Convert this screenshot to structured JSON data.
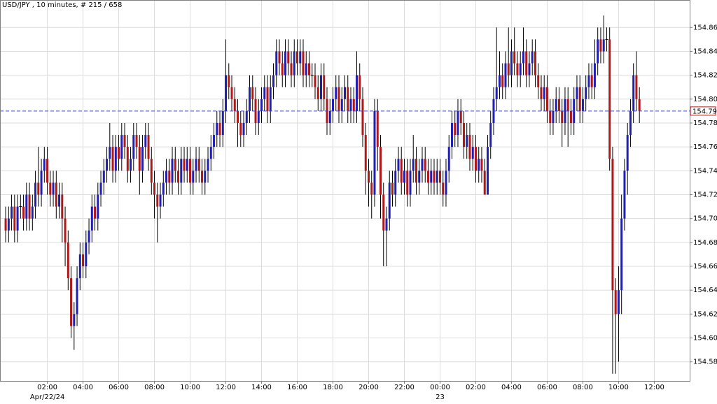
{
  "chart_data": {
    "type": "candlestick",
    "title": "USD/JPY , 10 minutes, # 215 / 658",
    "colors": {
      "up": "#2020b0",
      "down": "#b01818",
      "flat": "#000000",
      "last_price": "#4040c0"
    },
    "grid": true,
    "last_price": 154.79,
    "xlim": [
      -1.9,
      229.9
    ],
    "ylim": [
      154.564,
      154.883
    ],
    "xticks": [
      {
        "value": 14,
        "label": "02:00"
      },
      {
        "value": 26,
        "label": "04:00"
      },
      {
        "value": 38,
        "label": "06:00"
      },
      {
        "value": 50,
        "label": "08:00"
      },
      {
        "value": 62,
        "label": "10:00"
      },
      {
        "value": 74,
        "label": "12:00"
      },
      {
        "value": 86,
        "label": "14:00"
      },
      {
        "value": 98,
        "label": "16:00"
      },
      {
        "value": 110,
        "label": "18:00"
      },
      {
        "value": 122,
        "label": "20:00"
      },
      {
        "value": 134,
        "label": "22:00"
      },
      {
        "value": 146,
        "label": "00:00"
      },
      {
        "value": 158,
        "label": "02:00"
      },
      {
        "value": 170,
        "label": "04:00"
      },
      {
        "value": 182,
        "label": "06:00"
      },
      {
        "value": 194,
        "label": "08:00"
      },
      {
        "value": 206,
        "label": "10:00"
      },
      {
        "value": 218,
        "label": "12:00"
      }
    ],
    "date_labels": [
      {
        "value": 14,
        "label": "Apr/22/24"
      },
      {
        "value": 146,
        "label": "23"
      }
    ],
    "yticks": [
      154.58,
      {
        "value": 154.6,
        "label": "154.60"
      },
      154.62,
      154.64,
      154.66,
      154.68,
      {
        "value": 154.7,
        "label": "154.70"
      },
      154.72,
      154.74,
      154.76,
      154.78,
      {
        "value": 154.8,
        "label": "154.80"
      },
      154.82,
      154.84,
      154.86
    ],
    "open": [
      154.7,
      154.69,
      154.7,
      154.71,
      154.69,
      154.71,
      154.71,
      154.7,
      154.72,
      154.7,
      154.71,
      154.73,
      154.72,
      154.74,
      154.75,
      154.73,
      154.72,
      154.73,
      154.71,
      154.72,
      154.7,
      154.68,
      154.65,
      154.61,
      154.62,
      154.65,
      154.67,
      154.66,
      154.68,
      154.69,
      154.71,
      154.7,
      154.72,
      154.73,
      154.74,
      154.75,
      154.76,
      154.74,
      154.76,
      154.75,
      154.77,
      154.76,
      154.74,
      154.75,
      154.77,
      154.76,
      154.74,
      154.76,
      154.77,
      154.75,
      154.73,
      154.72,
      154.71,
      154.72,
      154.73,
      154.74,
      154.73,
      154.75,
      154.74,
      154.73,
      154.75,
      154.74,
      154.75,
      154.73,
      154.74,
      154.75,
      154.74,
      154.73,
      154.74,
      154.75,
      154.76,
      154.77,
      154.78,
      154.77,
      154.79,
      154.82,
      154.81,
      154.8,
      154.79,
      154.78,
      154.77,
      154.78,
      154.79,
      154.81,
      154.8,
      154.78,
      154.79,
      154.8,
      154.81,
      154.79,
      154.81,
      154.82,
      154.84,
      154.83,
      154.82,
      154.84,
      154.83,
      154.82,
      154.84,
      154.83,
      154.84,
      154.82,
      154.83,
      154.82,
      154.82,
      154.81,
      154.8,
      154.82,
      154.8,
      154.78,
      154.79,
      154.8,
      154.81,
      154.79,
      154.8,
      154.81,
      154.79,
      154.8,
      154.79,
      154.82,
      154.8,
      154.77,
      154.74,
      154.73,
      154.72,
      154.79,
      154.76,
      154.72,
      154.69,
      154.7,
      154.73,
      154.72,
      154.74,
      154.75,
      154.73,
      154.74,
      154.72,
      154.74,
      154.75,
      154.73,
      154.74,
      154.75,
      154.74,
      154.73,
      154.74,
      154.73,
      154.74,
      154.73,
      154.72,
      154.74,
      154.76,
      154.78,
      154.77,
      154.79,
      154.78,
      154.76,
      154.77,
      154.75,
      154.76,
      154.74,
      154.75,
      154.74,
      154.72,
      154.76,
      154.78,
      154.8,
      154.81,
      154.82,
      154.81,
      154.83,
      154.82,
      154.84,
      154.83,
      154.82,
      154.83,
      154.84,
      154.82,
      154.83,
      154.84,
      154.82,
      154.81,
      154.8,
      154.81,
      154.79,
      154.78,
      154.79,
      154.8,
      154.79,
      154.78,
      154.8,
      154.79,
      154.78,
      154.8,
      154.81,
      154.79,
      154.8,
      154.81,
      154.82,
      154.81,
      154.83,
      154.85,
      154.84,
      154.85,
      154.85,
      154.75,
      154.64,
      154.62,
      154.64,
      154.7,
      154.74,
      154.77,
      154.79,
      154.82,
      154.8
    ],
    "high": [
      154.71,
      154.71,
      154.72,
      154.72,
      154.72,
      154.72,
      154.72,
      154.73,
      154.73,
      154.72,
      154.74,
      154.76,
      154.75,
      154.76,
      154.76,
      154.74,
      154.74,
      154.74,
      154.73,
      154.73,
      154.71,
      154.69,
      154.66,
      154.63,
      154.66,
      154.68,
      154.68,
      154.69,
      154.7,
      154.72,
      154.72,
      154.73,
      154.74,
      154.75,
      154.76,
      154.78,
      154.77,
      154.77,
      154.77,
      154.78,
      154.78,
      154.77,
      154.76,
      154.78,
      154.78,
      154.77,
      154.77,
      154.78,
      154.78,
      154.76,
      154.74,
      154.73,
      154.73,
      154.74,
      154.75,
      154.75,
      154.76,
      154.76,
      154.75,
      154.76,
      154.76,
      154.76,
      154.76,
      154.75,
      154.76,
      154.76,
      154.75,
      154.75,
      154.76,
      154.77,
      154.78,
      154.79,
      154.79,
      154.8,
      154.85,
      154.83,
      154.82,
      154.81,
      154.8,
      154.79,
      154.79,
      154.8,
      154.82,
      154.82,
      154.81,
      154.8,
      154.81,
      154.82,
      154.82,
      154.82,
      154.83,
      154.85,
      154.85,
      154.84,
      154.85,
      154.85,
      154.84,
      154.85,
      154.85,
      154.85,
      154.85,
      154.84,
      154.84,
      154.83,
      154.83,
      154.82,
      154.83,
      154.83,
      154.81,
      154.8,
      154.81,
      154.82,
      154.82,
      154.81,
      154.82,
      154.82,
      154.81,
      154.81,
      154.84,
      154.83,
      154.81,
      154.78,
      154.75,
      154.74,
      154.8,
      154.8,
      154.77,
      154.73,
      154.71,
      154.74,
      154.74,
      154.75,
      154.76,
      154.76,
      154.75,
      154.75,
      154.75,
      154.77,
      154.76,
      154.75,
      154.76,
      154.76,
      154.75,
      154.75,
      154.75,
      154.75,
      154.75,
      154.74,
      154.75,
      154.77,
      154.79,
      154.79,
      154.8,
      154.8,
      154.79,
      154.78,
      154.78,
      154.77,
      154.77,
      154.76,
      154.76,
      154.75,
      154.77,
      154.79,
      154.81,
      154.86,
      154.84,
      154.83,
      154.84,
      154.86,
      154.85,
      154.86,
      154.84,
      154.84,
      154.86,
      154.85,
      154.84,
      154.85,
      154.85,
      154.83,
      154.82,
      154.82,
      154.82,
      154.8,
      154.8,
      154.81,
      154.81,
      154.8,
      154.81,
      154.81,
      154.8,
      154.81,
      154.82,
      154.82,
      154.81,
      154.82,
      154.83,
      154.83,
      154.85,
      154.86,
      154.86,
      154.87,
      154.86,
      154.86,
      154.76,
      154.65,
      154.66,
      154.72,
      154.75,
      154.78,
      154.8,
      154.83,
      154.84,
      154.81
    ],
    "low": [
      154.68,
      154.68,
      154.69,
      154.68,
      154.68,
      154.7,
      154.69,
      154.69,
      154.69,
      154.69,
      154.7,
      154.71,
      154.71,
      154.73,
      154.72,
      154.71,
      154.71,
      154.7,
      154.7,
      154.68,
      154.66,
      154.64,
      154.6,
      154.59,
      154.61,
      154.64,
      154.65,
      154.65,
      154.67,
      154.68,
      154.69,
      154.69,
      154.71,
      154.72,
      154.73,
      154.74,
      154.73,
      154.73,
      154.74,
      154.74,
      154.75,
      154.73,
      154.73,
      154.74,
      154.75,
      154.72,
      154.73,
      154.75,
      154.74,
      154.72,
      154.7,
      154.68,
      154.7,
      154.71,
      154.72,
      154.72,
      154.72,
      154.73,
      154.72,
      154.72,
      154.73,
      154.73,
      154.72,
      154.72,
      154.73,
      154.73,
      154.72,
      154.72,
      154.73,
      154.74,
      154.75,
      154.76,
      154.76,
      154.76,
      154.78,
      154.8,
      154.79,
      154.78,
      154.76,
      154.76,
      154.76,
      154.77,
      154.78,
      154.79,
      154.77,
      154.77,
      154.78,
      154.79,
      154.78,
      154.78,
      154.8,
      154.81,
      154.82,
      154.81,
      154.81,
      154.82,
      154.81,
      154.81,
      154.82,
      154.82,
      154.81,
      154.81,
      154.81,
      154.81,
      154.8,
      154.79,
      154.79,
      154.79,
      154.77,
      154.77,
      154.78,
      154.79,
      154.78,
      154.78,
      154.79,
      154.78,
      154.78,
      154.78,
      154.78,
      154.79,
      154.76,
      154.72,
      154.71,
      154.7,
      154.71,
      154.74,
      154.7,
      154.66,
      154.66,
      154.69,
      154.71,
      154.71,
      154.73,
      154.72,
      154.72,
      154.71,
      154.71,
      154.73,
      154.72,
      154.72,
      154.73,
      154.73,
      154.72,
      154.72,
      154.72,
      154.72,
      154.72,
      154.71,
      154.71,
      154.73,
      154.75,
      154.76,
      154.76,
      154.77,
      154.75,
      154.75,
      154.74,
      154.74,
      154.73,
      154.73,
      154.73,
      154.72,
      154.72,
      154.75,
      154.77,
      154.79,
      154.8,
      154.8,
      154.8,
      154.81,
      154.81,
      154.82,
      154.81,
      154.81,
      154.82,
      154.81,
      154.81,
      154.82,
      154.81,
      154.8,
      154.79,
      154.79,
      154.78,
      154.77,
      154.77,
      154.78,
      154.78,
      154.76,
      154.77,
      154.76,
      154.77,
      154.77,
      154.79,
      154.78,
      154.78,
      154.79,
      154.8,
      154.8,
      154.8,
      154.82,
      154.83,
      154.83,
      154.84,
      154.74,
      154.57,
      154.57,
      154.58,
      154.62,
      154.69,
      154.72,
      154.76,
      154.78,
      154.79,
      154.78
    ],
    "close": [
      154.69,
      154.7,
      154.71,
      154.69,
      154.71,
      154.71,
      154.7,
      154.72,
      154.7,
      154.71,
      154.73,
      154.72,
      154.74,
      154.75,
      154.73,
      154.72,
      154.73,
      154.71,
      154.72,
      154.7,
      154.68,
      154.65,
      154.61,
      154.62,
      154.65,
      154.67,
      154.66,
      154.68,
      154.69,
      154.71,
      154.7,
      154.72,
      154.73,
      154.74,
      154.75,
      154.76,
      154.74,
      154.76,
      154.75,
      154.77,
      154.76,
      154.74,
      154.75,
      154.77,
      154.76,
      154.74,
      154.76,
      154.77,
      154.75,
      154.73,
      154.72,
      154.71,
      154.72,
      154.73,
      154.74,
      154.73,
      154.75,
      154.74,
      154.73,
      154.75,
      154.74,
      154.75,
      154.73,
      154.74,
      154.75,
      154.74,
      154.73,
      154.74,
      154.75,
      154.76,
      154.77,
      154.78,
      154.77,
      154.79,
      154.82,
      154.81,
      154.8,
      154.79,
      154.78,
      154.77,
      154.78,
      154.79,
      154.81,
      154.8,
      154.78,
      154.79,
      154.8,
      154.81,
      154.79,
      154.81,
      154.82,
      154.84,
      154.83,
      154.82,
      154.84,
      154.83,
      154.82,
      154.84,
      154.83,
      154.84,
      154.82,
      154.83,
      154.82,
      154.82,
      154.81,
      154.8,
      154.82,
      154.8,
      154.78,
      154.79,
      154.8,
      154.81,
      154.79,
      154.8,
      154.81,
      154.79,
      154.8,
      154.79,
      154.82,
      154.8,
      154.77,
      154.74,
      154.73,
      154.72,
      154.79,
      154.76,
      154.72,
      154.69,
      154.7,
      154.73,
      154.72,
      154.74,
      154.75,
      154.73,
      154.74,
      154.72,
      154.74,
      154.75,
      154.73,
      154.74,
      154.75,
      154.74,
      154.73,
      154.74,
      154.73,
      154.74,
      154.73,
      154.72,
      154.74,
      154.76,
      154.78,
      154.77,
      154.79,
      154.78,
      154.76,
      154.77,
      154.75,
      154.76,
      154.74,
      154.75,
      154.74,
      154.72,
      154.76,
      154.78,
      154.8,
      154.81,
      154.82,
      154.81,
      154.83,
      154.82,
      154.84,
      154.83,
      154.82,
      154.83,
      154.84,
      154.82,
      154.83,
      154.84,
      154.82,
      154.81,
      154.8,
      154.81,
      154.79,
      154.78,
      154.79,
      154.8,
      154.79,
      154.78,
      154.8,
      154.79,
      154.78,
      154.8,
      154.81,
      154.79,
      154.8,
      154.81,
      154.82,
      154.81,
      154.83,
      154.85,
      154.84,
      154.85,
      154.85,
      154.75,
      154.64,
      154.62,
      154.64,
      154.7,
      154.74,
      154.77,
      154.79,
      154.82,
      154.8,
      154.79
    ]
  }
}
